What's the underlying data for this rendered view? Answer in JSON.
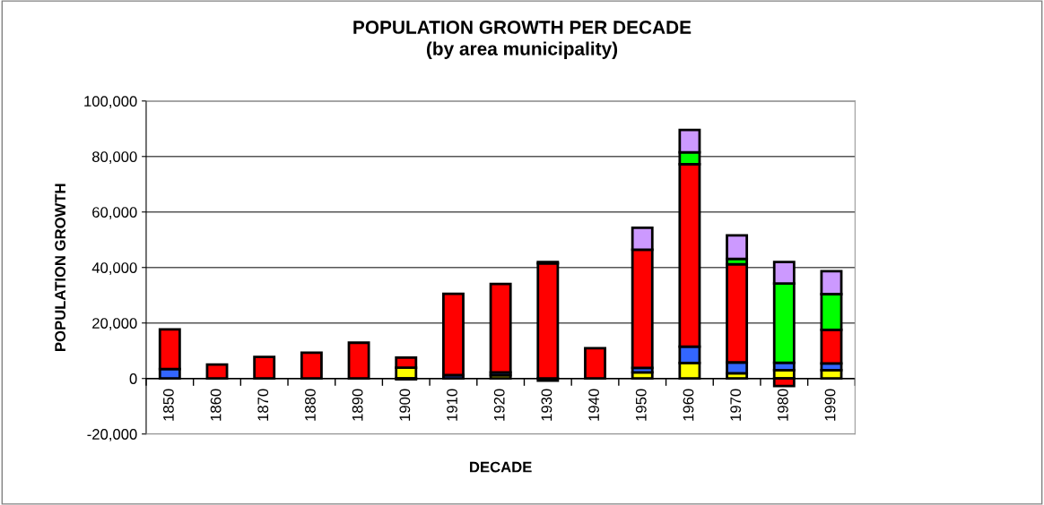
{
  "chart_data": {
    "type": "bar",
    "stacked": true,
    "title": "POPULATION GROWTH PER DECADE\n(by area municipality)",
    "xlabel": "DECADE",
    "ylabel": "POPULATION GROWTH",
    "categories": [
      "1850",
      "1860",
      "1870",
      "1880",
      "1890",
      "1900",
      "1910",
      "1920",
      "1930",
      "1940",
      "1950",
      "1960",
      "1970",
      "1980",
      "1990"
    ],
    "series": [
      {
        "color": "#ffff00",
        "values": [
          null,
          null,
          null,
          null,
          null,
          3900,
          null,
          1200,
          -800,
          null,
          2200,
          5600,
          1900,
          3000,
          3000
        ]
      },
      {
        "color": "#3366ff",
        "values": [
          3400,
          null,
          null,
          null,
          null,
          -300,
          1200,
          1000,
          null,
          null,
          1600,
          5900,
          3900,
          2700,
          2400
        ]
      },
      {
        "color": "#ff0000",
        "values": [
          14300,
          5000,
          7800,
          9300,
          12900,
          3600,
          29300,
          31900,
          41500,
          10900,
          42600,
          65700,
          35400,
          -2700,
          12100
        ]
      },
      {
        "color": "#00ff00",
        "values": [
          null,
          null,
          null,
          null,
          null,
          null,
          null,
          null,
          500,
          null,
          null,
          4300,
          1900,
          28500,
          12900
        ]
      },
      {
        "color": "#cc99ff",
        "values": [
          null,
          null,
          null,
          null,
          null,
          null,
          null,
          null,
          null,
          null,
          7900,
          8100,
          8500,
          7800,
          8300
        ]
      }
    ],
    "ylim": [
      -20000,
      100000
    ],
    "yticks": [
      {
        "value": -20000,
        "label": "-20,000"
      },
      0,
      {
        "value": 20000,
        "label": "20,000"
      },
      {
        "value": 40000,
        "label": "40,000"
      },
      {
        "value": 60000,
        "label": "60,000"
      },
      {
        "value": 80000,
        "label": "80,000"
      },
      {
        "value": 100000,
        "label": "100,000"
      }
    ],
    "grid": "y"
  }
}
